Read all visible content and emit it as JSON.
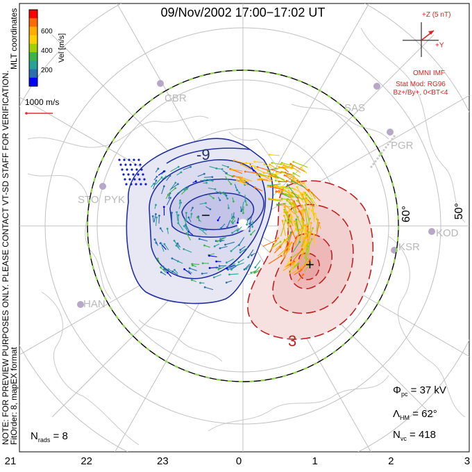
{
  "title": "09/Nov/2002 17:00−17:02 UT",
  "notes": {
    "preview": "NOTE: FOR PREVIEW PURPOSES ONLY. PLEASE CONTACT VT-SD STAFF FOR VERIFICATION.",
    "fit": "FitOrder: 8,  mapEX format",
    "coords": "MLT coordinates"
  },
  "colorbar": {
    "label": "Vel [m/s]",
    "ticks": [
      "600",
      "400",
      "200"
    ],
    "colors": [
      "#ff0000",
      "#ff6a00",
      "#ffae00",
      "#ffd000",
      "#a0d000",
      "#3cb44b",
      "#2aa198",
      "#2a6fb0",
      "#0000ff"
    ]
  },
  "vector_scale": {
    "label": "1000 m/s"
  },
  "imf": {
    "z_label": "+Z (5 nT)",
    "y_label": "+Y",
    "source": "OMNI IMF",
    "model": "Stat Mod: RG96",
    "condition": "Bz+/By+, 0<BT<4"
  },
  "stations": [
    "CBR",
    "SAS",
    "PGR",
    "STO",
    "PYK",
    "KOD",
    "KSR",
    "HAN"
  ],
  "lat_labels": [
    "60°",
    "50°"
  ],
  "contour_labels": {
    "negative_top": "-9",
    "negative_min": "−",
    "positive_max": "+",
    "positive_bottom": "3"
  },
  "stats": {
    "phi_symbol": "Φ",
    "phi_sub": "pc",
    "phi_value": " = 37 kV",
    "lambda_symbol": "Λ",
    "lambda_sub": "HM",
    "lambda_value": " = 62°",
    "nvc_symbol": "N",
    "nvc_sub": "vc",
    "nvc_value": " = 418",
    "nrads_symbol": "N",
    "nrads_sub": "rads",
    "nrads_value": " = 8"
  },
  "chart_data": {
    "type": "scatter",
    "title": "09/Nov/2002 17:00−17:02 UT",
    "x_axis_ticks": [
      "21",
      "22",
      "23",
      "0",
      "1",
      "2",
      "3"
    ],
    "cross_polar_cap_potential_kV": 37,
    "heppner_maynard_boundary_deg": 62,
    "n_vectors": 418,
    "n_radars": 8,
    "velocity_scale_ms": [
      0,
      600
    ],
    "potential_cells": [
      {
        "name": "-9",
        "sign": "negative"
      },
      {
        "name": "3",
        "sign": "positive"
      }
    ]
  }
}
